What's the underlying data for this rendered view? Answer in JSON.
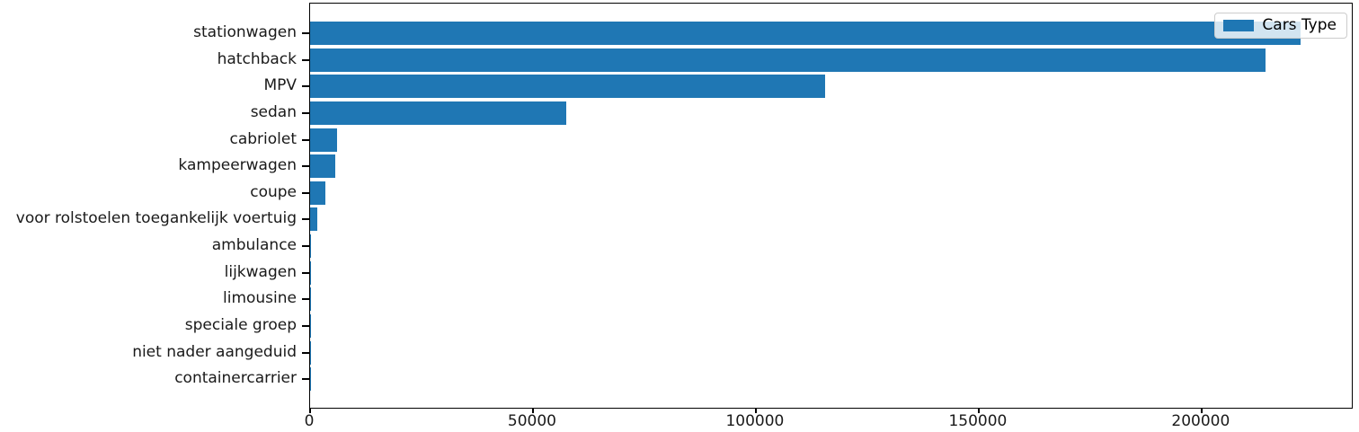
{
  "chart_data": {
    "type": "bar",
    "orientation": "horizontal",
    "title": "",
    "xlabel": "",
    "ylabel": "",
    "categories": [
      "stationwagen",
      "hatchback",
      "MPV",
      "sedan",
      "cabriolet",
      "kampeerwagen",
      "coupe",
      "voor rolstoelen toegankelijk voertuig",
      "ambulance",
      "lijkwagen",
      "limousine",
      "speciale groep",
      "niet nader aangeduid",
      "containercarrier"
    ],
    "values": [
      222300,
      214400,
      115500,
      57500,
      6100,
      5700,
      3400,
      1600,
      200,
      150,
      100,
      80,
      50,
      30
    ],
    "legend": {
      "label": "Cars Type",
      "position": "upper-right"
    },
    "xlim": [
      0,
      233700
    ],
    "xticks": [
      0,
      50000,
      100000,
      150000,
      200000
    ],
    "xtick_labels": [
      "0",
      "50000",
      "100000",
      "150000",
      "200000"
    ],
    "grid": false
  },
  "colors": {
    "bar": "#1f77b4",
    "axis": "#000000",
    "text": "#1a1a1a",
    "legend_border": "#cccccc",
    "legend_background": "rgba(255,255,255,0.8)",
    "figure_background": "#ffffff"
  }
}
